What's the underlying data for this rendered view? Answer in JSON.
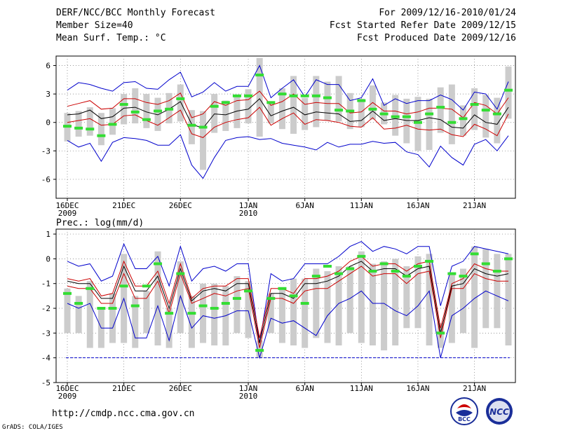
{
  "header": {
    "title": "DERF/NCC/BCC Monthly Forecast",
    "member_size": "Member Size=40",
    "variable1": "Mean Surf. Temp.: °C",
    "period": "For 2009/12/16-2010/01/24",
    "fcst_started": "Fcst Started Refer Date 2009/12/15",
    "fcst_produced": "Fcst Produced Date 2009/12/16"
  },
  "footer": {
    "url": "http://cmdp.ncc.cma.gov.cn",
    "credit": "GrADS: COLA/IGES",
    "logo_left": "BCC",
    "logo_right": "NCC"
  },
  "colors": {
    "envelope": "#0000cc",
    "spread": "#cc0000",
    "mean": "#000000",
    "marker": "#33dd33",
    "box": "#cccccc"
  },
  "chart_data": [
    {
      "type": "line",
      "title": "Mean Surf. Temp.: °C",
      "x_tick_labels": [
        {
          "day": 1,
          "label": "16DEC",
          "sub": "2009"
        },
        {
          "day": 6,
          "label": "21DEC",
          "sub": ""
        },
        {
          "day": 11,
          "label": "26DEC",
          "sub": ""
        },
        {
          "day": 17,
          "label": "1JAN",
          "sub": "2010"
        },
        {
          "day": 22,
          "label": "6JAN",
          "sub": ""
        },
        {
          "day": 27,
          "label": "11JAN",
          "sub": ""
        },
        {
          "day": 32,
          "label": "16JAN",
          "sub": ""
        },
        {
          "day": 37,
          "label": "21JAN",
          "sub": ""
        }
      ],
      "x": [
        1,
        2,
        3,
        4,
        5,
        6,
        7,
        8,
        9,
        10,
        11,
        12,
        13,
        14,
        15,
        16,
        17,
        18,
        19,
        20,
        21,
        22,
        23,
        24,
        25,
        26,
        27,
        28,
        29,
        30,
        31,
        32,
        33,
        34,
        35,
        36,
        37,
        38,
        39,
        40
      ],
      "ylim": [
        -8,
        7
      ],
      "yticks": [
        6,
        3,
        0,
        -3,
        -6
      ],
      "series": [
        {
          "name": "max",
          "values": [
            3.4,
            4.2,
            4.0,
            3.6,
            3.3,
            4.2,
            4.3,
            3.6,
            3.5,
            4.5,
            5.3,
            2.7,
            3.2,
            4.2,
            3.3,
            3.8,
            3.8,
            6.0,
            2.6,
            3.6,
            4.5,
            2.7,
            4.5,
            4.0,
            4.0,
            2.3,
            2.6,
            4.6,
            1.8,
            2.5,
            2.0,
            2.3,
            2.3,
            2.9,
            2.4,
            1.3,
            3.2,
            3.0,
            1.4,
            4.3
          ]
        },
        {
          "name": "upper",
          "values": [
            1.7,
            2.0,
            2.3,
            1.4,
            1.5,
            2.5,
            2.5,
            2.1,
            1.9,
            2.3,
            3.1,
            0.5,
            0.9,
            2.2,
            1.8,
            2.3,
            2.4,
            3.3,
            1.8,
            2.2,
            3.0,
            1.9,
            2.1,
            2.0,
            2.0,
            1.0,
            1.1,
            2.1,
            1.2,
            1.2,
            0.9,
            1.1,
            1.5,
            1.5,
            1.4,
            0.5,
            2.1,
            1.8,
            0.9,
            2.6
          ]
        },
        {
          "name": "mean",
          "values": [
            0.8,
            0.9,
            1.3,
            0.4,
            0.6,
            1.5,
            1.6,
            1.1,
            0.8,
            1.4,
            2.2,
            -0.2,
            -0.6,
            0.9,
            0.8,
            1.2,
            1.4,
            2.5,
            0.7,
            1.2,
            1.6,
            0.8,
            1.1,
            1.0,
            0.9,
            0.1,
            0.2,
            1.2,
            0.2,
            0.4,
            0.2,
            0.2,
            0.5,
            0.3,
            -0.5,
            -0.6,
            0.8,
            0.0,
            -0.2,
            1.6
          ]
        },
        {
          "name": "lower",
          "values": [
            0.0,
            0.2,
            0.4,
            -0.3,
            -0.2,
            0.7,
            0.8,
            0.2,
            -0.3,
            0.5,
            1.3,
            -1.2,
            -1.6,
            -0.5,
            0.0,
            0.3,
            0.5,
            1.6,
            -0.3,
            0.4,
            1.0,
            -0.2,
            0.3,
            0.2,
            0.0,
            -0.4,
            -0.5,
            0.5,
            -0.7,
            -0.6,
            -0.3,
            -0.7,
            -0.8,
            -0.7,
            -1.3,
            -1.5,
            -0.2,
            -0.7,
            -1.4,
            0.9
          ]
        },
        {
          "name": "min",
          "values": [
            -1.9,
            -2.6,
            -2.2,
            -4.1,
            -2.1,
            -1.6,
            -1.7,
            -1.9,
            -2.4,
            -2.4,
            -1.3,
            -4.5,
            -5.9,
            -3.7,
            -1.9,
            -1.6,
            -1.5,
            -1.8,
            -1.7,
            -2.2,
            -2.4,
            -2.6,
            -2.9,
            -2.1,
            -2.6,
            -2.3,
            -2.3,
            -2.0,
            -2.2,
            -2.1,
            -3.1,
            -3.4,
            -4.7,
            -2.5,
            -3.7,
            -4.5,
            -2.3,
            -1.8,
            -3.0,
            -1.4
          ]
        },
        {
          "name": "box_top",
          "values": [
            1.0,
            1.2,
            1.6,
            1.0,
            1.5,
            3.0,
            3.6,
            3.0,
            2.6,
            3.1,
            4.0,
            1.3,
            1.2,
            3.0,
            2.3,
            2.8,
            3.5,
            6.8,
            2.0,
            3.6,
            4.9,
            2.6,
            4.9,
            4.3,
            4.9,
            3.1,
            2.5,
            3.9,
            2.1,
            2.9,
            2.5,
            2.7,
            2.5,
            3.7,
            4.0,
            1.8,
            3.6,
            2.9,
            2.6,
            5.9
          ]
        },
        {
          "name": "box_bottom",
          "values": [
            -2.0,
            -1.5,
            -1.4,
            -2.4,
            -1.3,
            -0.2,
            -0.1,
            -0.6,
            -0.9,
            -0.1,
            0.1,
            -2.3,
            -5.0,
            -1.1,
            -0.9,
            -0.6,
            -0.1,
            -1.5,
            -0.1,
            -0.7,
            -1.2,
            -0.8,
            -0.5,
            0.2,
            0.1,
            -0.7,
            -0.5,
            0.3,
            -0.2,
            -1.4,
            -2.2,
            -3.0,
            -2.9,
            -1.1,
            -2.3,
            -1.4,
            -0.8,
            -1.6,
            -2.2,
            0.4
          ]
        },
        {
          "name": "marker",
          "values": [
            -0.4,
            -0.6,
            -0.7,
            -1.4,
            -0.2,
            1.9,
            1.1,
            0.3,
            1.2,
            1.4,
            2.5,
            -0.3,
            -0.5,
            1.7,
            2.1,
            2.8,
            2.8,
            5.0,
            2.1,
            3.0,
            2.8,
            2.8,
            2.8,
            2.6,
            1.3,
            1.2,
            2.3,
            1.4,
            0.9,
            0.6,
            0.6,
            0.0,
            0.9,
            1.6,
            0.0,
            0.4,
            1.9,
            1.3,
            0.9,
            3.4
          ]
        }
      ]
    },
    {
      "type": "line",
      "title": "Prec.: log(mm/d)",
      "x_tick_labels": [
        {
          "day": 1,
          "label": "16DEC",
          "sub": "2009"
        },
        {
          "day": 6,
          "label": "21DEC",
          "sub": ""
        },
        {
          "day": 11,
          "label": "26DEC",
          "sub": ""
        },
        {
          "day": 17,
          "label": "1JAN",
          "sub": "2010"
        },
        {
          "day": 22,
          "label": "6JAN",
          "sub": ""
        },
        {
          "day": 27,
          "label": "11JAN",
          "sub": ""
        },
        {
          "day": 32,
          "label": "16JAN",
          "sub": ""
        },
        {
          "day": 37,
          "label": "21JAN",
          "sub": ""
        }
      ],
      "x": [
        1,
        2,
        3,
        4,
        5,
        6,
        7,
        8,
        9,
        10,
        11,
        12,
        13,
        14,
        15,
        16,
        17,
        18,
        19,
        20,
        21,
        22,
        23,
        24,
        25,
        26,
        27,
        28,
        29,
        30,
        31,
        32,
        33,
        34,
        35,
        36,
        37,
        38,
        39,
        40
      ],
      "ylim": [
        -5,
        1.2
      ],
      "yticks": [
        1,
        0,
        -1,
        -2,
        -3,
        -4,
        -5
      ],
      "baseline": -4,
      "series": [
        {
          "name": "max",
          "values": [
            -0.1,
            -0.3,
            -0.2,
            -0.9,
            -0.7,
            0.6,
            -0.4,
            -0.4,
            0.1,
            -1.1,
            0.5,
            -0.9,
            -0.4,
            -0.3,
            -0.5,
            -0.2,
            -0.2,
            -3.4,
            -0.6,
            -0.9,
            -0.8,
            -0.2,
            -0.2,
            -0.2,
            0.1,
            0.5,
            0.7,
            0.3,
            0.5,
            0.4,
            0.2,
            0.5,
            0.5,
            -1.9,
            -0.3,
            -0.1,
            0.5,
            0.4,
            0.3,
            0.2
          ]
        },
        {
          "name": "upper",
          "values": [
            -0.8,
            -0.9,
            -0.8,
            -1.5,
            -1.4,
            -0.1,
            -1.1,
            -1.1,
            -0.5,
            -1.8,
            -0.2,
            -1.6,
            -1.2,
            -1.1,
            -1.1,
            -0.8,
            -0.8,
            -3.2,
            -1.2,
            -1.2,
            -1.4,
            -0.8,
            -0.8,
            -0.7,
            -0.5,
            -0.1,
            0.1,
            -0.3,
            -0.2,
            -0.2,
            -0.5,
            -0.2,
            -0.1,
            -2.8,
            -1.0,
            -0.8,
            -0.2,
            -0.4,
            -0.5,
            -0.5
          ]
        },
        {
          "name": "mean",
          "values": [
            -0.9,
            -1.0,
            -1.0,
            -1.6,
            -1.6,
            -0.3,
            -1.3,
            -1.3,
            -0.7,
            -2.0,
            -0.4,
            -1.7,
            -1.3,
            -1.2,
            -1.3,
            -1.0,
            -1.0,
            -3.4,
            -1.4,
            -1.4,
            -1.6,
            -1.0,
            -1.0,
            -0.9,
            -0.7,
            -0.3,
            -0.1,
            -0.5,
            -0.4,
            -0.4,
            -0.7,
            -0.4,
            -0.3,
            -3.0,
            -1.1,
            -1.0,
            -0.4,
            -0.6,
            -0.7,
            -0.6
          ]
        },
        {
          "name": "lower",
          "values": [
            -1.1,
            -1.2,
            -1.2,
            -1.8,
            -1.8,
            -0.6,
            -1.6,
            -1.6,
            -0.9,
            -2.2,
            -0.6,
            -1.8,
            -1.6,
            -1.4,
            -1.5,
            -1.3,
            -1.2,
            -3.6,
            -1.6,
            -1.6,
            -1.8,
            -1.3,
            -1.2,
            -1.2,
            -0.9,
            -0.6,
            -0.3,
            -0.7,
            -0.6,
            -0.6,
            -1.0,
            -0.6,
            -0.5,
            -3.2,
            -1.2,
            -1.2,
            -0.6,
            -0.8,
            -0.9,
            -0.9
          ]
        },
        {
          "name": "min",
          "values": [
            -1.8,
            -2.0,
            -1.8,
            -2.8,
            -2.8,
            -1.6,
            -3.2,
            -3.2,
            -1.9,
            -3.3,
            -1.5,
            -2.8,
            -2.3,
            -2.4,
            -2.3,
            -2.1,
            -2.1,
            -4.0,
            -2.4,
            -2.6,
            -2.5,
            -2.8,
            -3.1,
            -2.3,
            -1.8,
            -1.6,
            -1.3,
            -1.8,
            -1.8,
            -2.1,
            -2.3,
            -1.9,
            -1.3,
            -4.0,
            -2.3,
            -2.0,
            -1.6,
            -1.3,
            -1.5,
            -1.7
          ]
        },
        {
          "name": "box_top",
          "values": [
            -1.2,
            -1.5,
            -0.9,
            -2.0,
            -1.4,
            0.2,
            -1.5,
            -1.3,
            0.3,
            -2.0,
            -0.1,
            -1.5,
            -1.0,
            -1.0,
            -1.1,
            -0.7,
            -0.9,
            -3.3,
            -1.4,
            -1.2,
            -0.8,
            -0.8,
            -0.4,
            -0.5,
            -0.3,
            -0.3,
            0.3,
            -0.2,
            -0.1,
            0.0,
            -0.3,
            0.1,
            0.2,
            -2.6,
            -0.6,
            -0.4,
            0.5,
            0.4,
            0.2,
            0.2
          ]
        },
        {
          "name": "box_bottom",
          "values": [
            -3.0,
            -3.0,
            -3.6,
            -3.6,
            -3.4,
            -3.4,
            -3.6,
            -3.0,
            -3.5,
            -3.6,
            -3.0,
            -3.6,
            -3.4,
            -3.5,
            -3.5,
            -3.0,
            -3.2,
            -4.0,
            -3.0,
            -3.4,
            -3.5,
            -3.6,
            -3.2,
            -3.4,
            -3.5,
            -3.0,
            -3.4,
            -3.5,
            -3.7,
            -3.5,
            -2.8,
            -2.8,
            -3.5,
            -3.6,
            -3.4,
            -3.0,
            -3.6,
            -2.8,
            -2.8,
            -3.5
          ]
        },
        {
          "name": "marker",
          "values": [
            -1.4,
            -1.8,
            -1.2,
            -2.0,
            -2.0,
            -1.1,
            -1.9,
            -1.1,
            -0.2,
            -2.2,
            -0.6,
            -2.2,
            -1.9,
            -2.0,
            -1.8,
            -1.6,
            -1.3,
            -3.7,
            -1.6,
            -1.2,
            -1.5,
            -1.8,
            -0.7,
            -0.3,
            -0.6,
            -0.4,
            0.1,
            -0.5,
            -0.2,
            -0.5,
            -0.7,
            -0.3,
            -0.1,
            -3.0,
            -0.6,
            -0.7,
            0.2,
            -0.2,
            -0.5,
            0.0
          ]
        }
      ]
    }
  ]
}
